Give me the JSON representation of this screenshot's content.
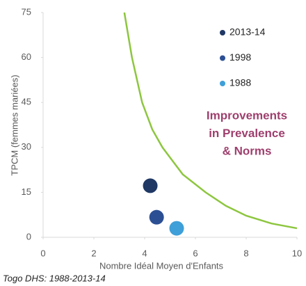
{
  "chart_data": {
    "type": "scatter",
    "xlabel": "Nombre Idéal Moyen d'Enfants",
    "ylabel": "TPCM (femmes mariées)",
    "annotation": [
      "Improvements",
      "in Prevalence",
      "& Norms"
    ],
    "annotation_color": "#9e3f6d",
    "source": "Togo DHS: 1988-2013-14",
    "xlim": [
      0,
      10
    ],
    "ylim": [
      0,
      75
    ],
    "xticks": [
      0,
      2,
      4,
      6,
      8,
      10
    ],
    "yticks": [
      0,
      15,
      30,
      45,
      60,
      75
    ],
    "series": [
      {
        "name": "2013-14",
        "color": "#1f3864",
        "x": [
          4.22
        ],
        "values": [
          17.2
        ]
      },
      {
        "name": "1998",
        "color": "#2c4f94",
        "x": [
          4.47
        ],
        "values": [
          6.7
        ]
      },
      {
        "name": "1988",
        "color": "#3f9fd8",
        "x": [
          5.26
        ],
        "values": [
          3.0
        ]
      }
    ],
    "curve": {
      "color": "#8dc63f",
      "x": [
        3.2,
        3.5,
        3.9,
        4.3,
        4.7,
        5.5,
        6.4,
        7.2,
        8,
        9,
        10
      ],
      "values": [
        75,
        60,
        45,
        36,
        30,
        21,
        15,
        10.5,
        7.2,
        4.6,
        3
      ]
    }
  }
}
